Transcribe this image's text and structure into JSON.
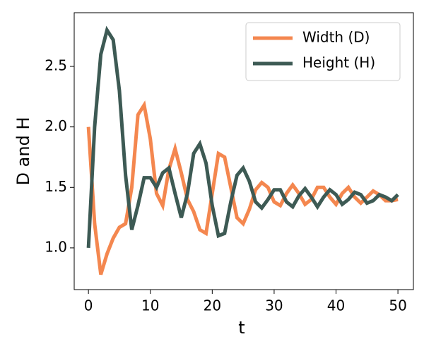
{
  "chart_data": {
    "type": "line",
    "xlabel": "t",
    "ylabel": "D and H",
    "x": [
      0,
      1,
      2,
      3,
      4,
      5,
      6,
      7,
      8,
      9,
      10,
      11,
      12,
      13,
      14,
      15,
      16,
      17,
      18,
      19,
      20,
      21,
      22,
      23,
      24,
      25,
      26,
      27,
      28,
      29,
      30,
      31,
      32,
      33,
      34,
      35,
      36,
      37,
      38,
      39,
      40,
      41,
      42,
      43,
      44,
      45,
      46,
      47,
      48,
      49,
      50
    ],
    "series": [
      {
        "name": "Width (D)",
        "color": "#f4874f",
        "values": [
          2.0,
          1.2,
          0.78,
          0.95,
          1.08,
          1.17,
          1.2,
          1.5,
          2.1,
          2.18,
          1.9,
          1.45,
          1.35,
          1.65,
          1.82,
          1.62,
          1.4,
          1.3,
          1.15,
          1.12,
          1.45,
          1.78,
          1.75,
          1.5,
          1.25,
          1.2,
          1.32,
          1.48,
          1.54,
          1.5,
          1.38,
          1.35,
          1.45,
          1.52,
          1.45,
          1.36,
          1.4,
          1.5,
          1.5,
          1.42,
          1.36,
          1.45,
          1.5,
          1.42,
          1.37,
          1.42,
          1.47,
          1.44,
          1.39,
          1.39,
          1.4
        ]
      },
      {
        "name": "Height (H)",
        "color": "#3d5a54",
        "values": [
          1.0,
          2.0,
          2.6,
          2.8,
          2.72,
          2.3,
          1.6,
          1.15,
          1.35,
          1.58,
          1.58,
          1.5,
          1.62,
          1.66,
          1.45,
          1.25,
          1.45,
          1.78,
          1.86,
          1.7,
          1.35,
          1.1,
          1.12,
          1.38,
          1.6,
          1.66,
          1.55,
          1.38,
          1.33,
          1.4,
          1.48,
          1.48,
          1.38,
          1.34,
          1.43,
          1.49,
          1.42,
          1.34,
          1.42,
          1.48,
          1.44,
          1.36,
          1.4,
          1.46,
          1.44,
          1.37,
          1.39,
          1.44,
          1.42,
          1.39,
          1.44
        ]
      }
    ],
    "xlim": [
      -2.3,
      52.5
    ],
    "ylim": [
      0.655,
      2.944
    ],
    "xticks": [
      0,
      10,
      20,
      30,
      40,
      50
    ],
    "yticks": [
      {
        "value": 1,
        "label": "1.0"
      },
      1.5,
      {
        "value": 2,
        "label": "2.0"
      },
      2.5
    ],
    "grid": false,
    "legend": "upper right"
  }
}
